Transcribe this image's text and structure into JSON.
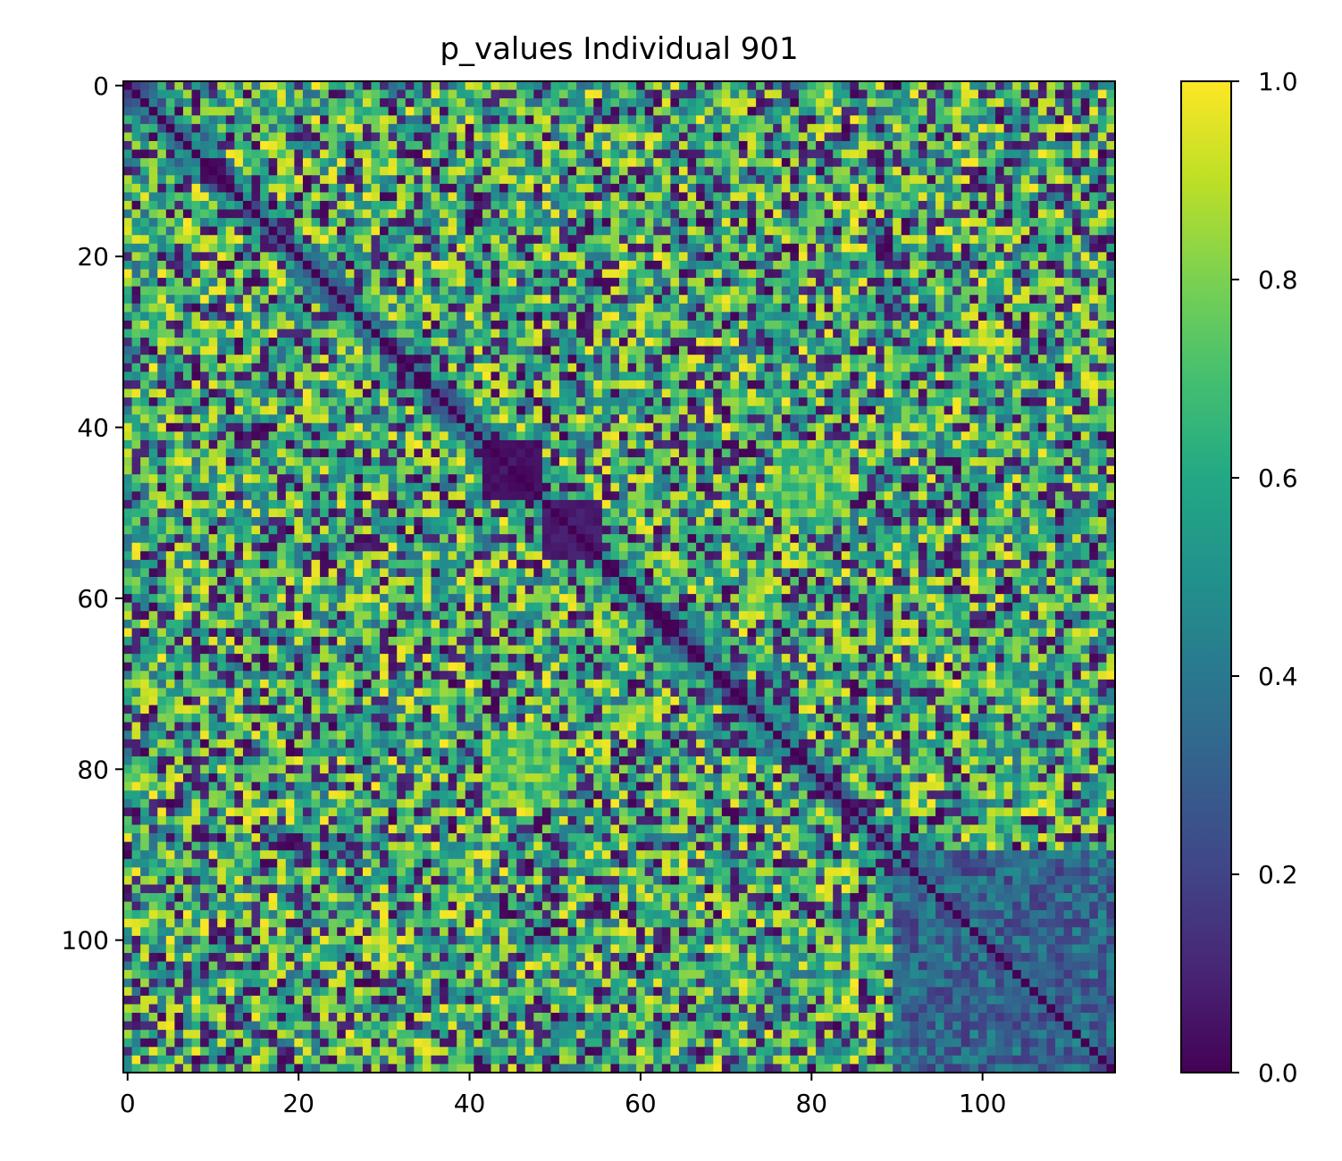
{
  "chart_data": {
    "type": "heatmap",
    "title": "p_values Individual 901",
    "xlabel": "",
    "ylabel": "",
    "matrix_size": 116,
    "x_ticks": [
      0,
      20,
      40,
      60,
      80,
      100
    ],
    "y_ticks": [
      0,
      20,
      40,
      60,
      80,
      100
    ],
    "xlim": [
      0,
      115
    ],
    "ylim": [
      115,
      0
    ],
    "colorbar": {
      "min": 0.0,
      "max": 1.0,
      "ticks": [
        "0.0",
        "0.2",
        "0.4",
        "0.6",
        "0.8",
        "1.0"
      ],
      "colormap": "viridis"
    },
    "diagonal_value": 0.0,
    "low_value_blocks": [
      {
        "rows": [
          42,
          48
        ],
        "cols": [
          42,
          48
        ],
        "value": 0.02
      },
      {
        "rows": [
          49,
          55
        ],
        "cols": [
          49,
          55
        ],
        "value": 0.04
      },
      {
        "rows": [
          90,
          115
        ],
        "cols": [
          90,
          115
        ],
        "value": 0.15
      }
    ],
    "high_value_regions": [
      {
        "rows": [
          76,
          84
        ],
        "cols": [
          42,
          50
        ],
        "value": 0.92
      },
      {
        "rows": [
          42,
          50
        ],
        "cols": [
          76,
          84
        ],
        "value": 0.92
      }
    ]
  },
  "colors": {
    "viridis_low": "#440154",
    "viridis_mid": "#21918c",
    "viridis_high": "#fde725"
  }
}
